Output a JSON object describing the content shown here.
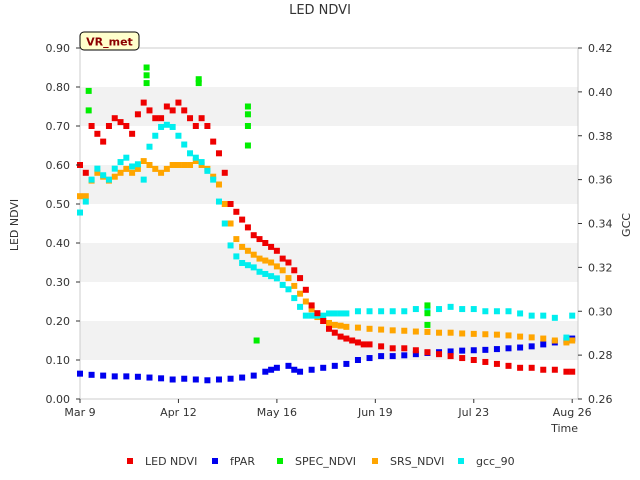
{
  "chart_data": {
    "type": "scatter",
    "title": "LED NDVI",
    "badge": "VR_met",
    "xlabel": "Time",
    "ylabel": "LED NDVI",
    "y2label": "GCC",
    "xlim": [
      0,
      172
    ],
    "ylim": [
      0,
      0.9
    ],
    "y2lim": [
      0.26,
      0.42
    ],
    "x_ticks": [
      {
        "day": 0,
        "label": "Mar 9"
      },
      {
        "day": 34,
        "label": "Apr 12"
      },
      {
        "day": 68,
        "label": "May 16"
      },
      {
        "day": 102,
        "label": "Jun 19"
      },
      {
        "day": 136,
        "label": "Jul 23"
      },
      {
        "day": 170,
        "label": "Aug 26"
      }
    ],
    "y_ticks": [
      {
        "v": 0.0,
        "label": "0.00"
      },
      {
        "v": 0.1,
        "label": "0.10"
      },
      {
        "v": 0.2,
        "label": "0.20"
      },
      {
        "v": 0.3,
        "label": "0.30"
      },
      {
        "v": 0.4,
        "label": "0.40"
      },
      {
        "v": 0.5,
        "label": "0.50"
      },
      {
        "v": 0.6,
        "label": "0.60"
      },
      {
        "v": 0.7,
        "label": "0.70"
      },
      {
        "v": 0.8,
        "label": "0.80"
      },
      {
        "v": 0.9,
        "label": "0.90"
      }
    ],
    "y2_ticks": [
      {
        "v": 0.26,
        "label": "0.26"
      },
      {
        "v": 0.28,
        "label": "0.28"
      },
      {
        "v": 0.3,
        "label": "0.30"
      },
      {
        "v": 0.32,
        "label": "0.32"
      },
      {
        "v": 0.34,
        "label": "0.34"
      },
      {
        "v": 0.36,
        "label": "0.36"
      },
      {
        "v": 0.38,
        "label": "0.38"
      },
      {
        "v": 0.4,
        "label": "0.40"
      },
      {
        "v": 0.42,
        "label": "0.42"
      }
    ],
    "series": [
      {
        "name": "LED NDVI",
        "color": "#ee0000",
        "axis": "left",
        "x": [
          0,
          2,
          4,
          6,
          8,
          10,
          12,
          14,
          16,
          18,
          20,
          22,
          24,
          26,
          28,
          30,
          32,
          34,
          36,
          38,
          40,
          42,
          44,
          46,
          48,
          50,
          52,
          54,
          56,
          58,
          60,
          62,
          64,
          66,
          68,
          70,
          72,
          74,
          76,
          78,
          80,
          82,
          84,
          86,
          88,
          90,
          92,
          94,
          96,
          98,
          100,
          104,
          108,
          112,
          116,
          120,
          124,
          128,
          132,
          136,
          140,
          144,
          148,
          152,
          156,
          160,
          164,
          168,
          170
        ],
        "y": [
          0.6,
          0.58,
          0.7,
          0.68,
          0.66,
          0.7,
          0.72,
          0.71,
          0.7,
          0.68,
          0.73,
          0.76,
          0.74,
          0.72,
          0.72,
          0.75,
          0.74,
          0.76,
          0.74,
          0.72,
          0.7,
          0.72,
          0.7,
          0.66,
          0.63,
          0.58,
          0.5,
          0.48,
          0.46,
          0.44,
          0.42,
          0.41,
          0.4,
          0.39,
          0.38,
          0.36,
          0.35,
          0.33,
          0.31,
          0.28,
          0.24,
          0.22,
          0.2,
          0.18,
          0.17,
          0.16,
          0.155,
          0.15,
          0.145,
          0.14,
          0.14,
          0.135,
          0.13,
          0.13,
          0.125,
          0.12,
          0.115,
          0.11,
          0.105,
          0.1,
          0.095,
          0.09,
          0.085,
          0.08,
          0.08,
          0.075,
          0.075,
          0.07,
          0.07
        ]
      },
      {
        "name": "fPAR",
        "color": "#0000ee",
        "axis": "left",
        "x": [
          0,
          4,
          8,
          12,
          16,
          20,
          24,
          28,
          32,
          36,
          40,
          44,
          48,
          52,
          56,
          60,
          64,
          66,
          68,
          72,
          74,
          76,
          80,
          84,
          88,
          92,
          96,
          100,
          104,
          108,
          112,
          116,
          120,
          124,
          128,
          132,
          136,
          140,
          144,
          148,
          152,
          156,
          160,
          164,
          168,
          170
        ],
        "y": [
          0.065,
          0.062,
          0.06,
          0.058,
          0.058,
          0.057,
          0.055,
          0.053,
          0.05,
          0.052,
          0.05,
          0.048,
          0.05,
          0.052,
          0.055,
          0.06,
          0.07,
          0.075,
          0.08,
          0.085,
          0.075,
          0.07,
          0.075,
          0.08,
          0.085,
          0.09,
          0.1,
          0.105,
          0.11,
          0.11,
          0.112,
          0.115,
          0.118,
          0.12,
          0.122,
          0.124,
          0.125,
          0.126,
          0.128,
          0.13,
          0.132,
          0.135,
          0.14,
          0.145,
          0.15,
          0.155
        ]
      },
      {
        "name": "SPEC_NDVI",
        "color": "#00ee00",
        "axis": "left",
        "x": [
          3,
          3,
          23,
          23,
          23,
          41,
          41,
          58,
          58,
          58,
          58,
          61,
          120,
          120,
          120
        ],
        "y": [
          0.79,
          0.74,
          0.85,
          0.83,
          0.81,
          0.82,
          0.81,
          0.75,
          0.73,
          0.7,
          0.65,
          0.15,
          0.24,
          0.22,
          0.19
        ]
      },
      {
        "name": "SRS_NDVI",
        "color": "#ffa500",
        "axis": "left",
        "x": [
          0,
          2,
          4,
          6,
          8,
          10,
          12,
          14,
          16,
          18,
          20,
          22,
          24,
          26,
          28,
          30,
          32,
          34,
          36,
          38,
          40,
          42,
          44,
          46,
          48,
          50,
          52,
          54,
          56,
          58,
          60,
          62,
          64,
          66,
          68,
          70,
          72,
          74,
          76,
          78,
          80,
          82,
          84,
          86,
          88,
          90,
          92,
          96,
          100,
          104,
          108,
          112,
          116,
          120,
          124,
          128,
          132,
          136,
          140,
          144,
          148,
          152,
          156,
          160,
          164,
          168,
          170
        ],
        "y": [
          0.52,
          0.52,
          0.56,
          0.58,
          0.57,
          0.56,
          0.57,
          0.58,
          0.59,
          0.58,
          0.59,
          0.61,
          0.6,
          0.59,
          0.58,
          0.59,
          0.6,
          0.6,
          0.6,
          0.6,
          0.61,
          0.6,
          0.59,
          0.57,
          0.55,
          0.5,
          0.45,
          0.41,
          0.39,
          0.38,
          0.37,
          0.36,
          0.355,
          0.35,
          0.34,
          0.33,
          0.31,
          0.29,
          0.27,
          0.25,
          0.23,
          0.21,
          0.2,
          0.195,
          0.19,
          0.188,
          0.185,
          0.183,
          0.18,
          0.178,
          0.176,
          0.175,
          0.173,
          0.172,
          0.17,
          0.17,
          0.168,
          0.167,
          0.166,
          0.165,
          0.163,
          0.16,
          0.158,
          0.155,
          0.15,
          0.145,
          0.15
        ]
      },
      {
        "name": "gcc_90",
        "color": "#00eeee",
        "axis": "right",
        "x": [
          0,
          2,
          4,
          6,
          8,
          10,
          12,
          14,
          16,
          18,
          20,
          22,
          24,
          26,
          28,
          30,
          32,
          34,
          36,
          38,
          40,
          42,
          44,
          46,
          48,
          50,
          52,
          54,
          56,
          58,
          60,
          62,
          64,
          66,
          68,
          70,
          72,
          74,
          76,
          78,
          80,
          82,
          84,
          86,
          88,
          90,
          92,
          96,
          100,
          104,
          108,
          112,
          116,
          120,
          124,
          128,
          132,
          136,
          140,
          144,
          148,
          152,
          156,
          160,
          164,
          168,
          170
        ],
        "y": [
          0.345,
          0.35,
          0.36,
          0.365,
          0.362,
          0.36,
          0.365,
          0.368,
          0.37,
          0.366,
          0.367,
          0.36,
          0.375,
          0.38,
          0.384,
          0.385,
          0.384,
          0.38,
          0.376,
          0.372,
          0.37,
          0.368,
          0.364,
          0.36,
          0.35,
          0.34,
          0.33,
          0.325,
          0.322,
          0.321,
          0.32,
          0.318,
          0.317,
          0.316,
          0.315,
          0.312,
          0.31,
          0.306,
          0.302,
          0.298,
          0.298,
          0.298,
          0.298,
          0.299,
          0.299,
          0.299,
          0.299,
          0.3,
          0.3,
          0.3,
          0.3,
          0.3,
          0.301,
          0.301,
          0.301,
          0.302,
          0.301,
          0.301,
          0.3,
          0.3,
          0.3,
          0.299,
          0.298,
          0.298,
          0.297,
          0.288,
          0.298
        ]
      }
    ]
  }
}
